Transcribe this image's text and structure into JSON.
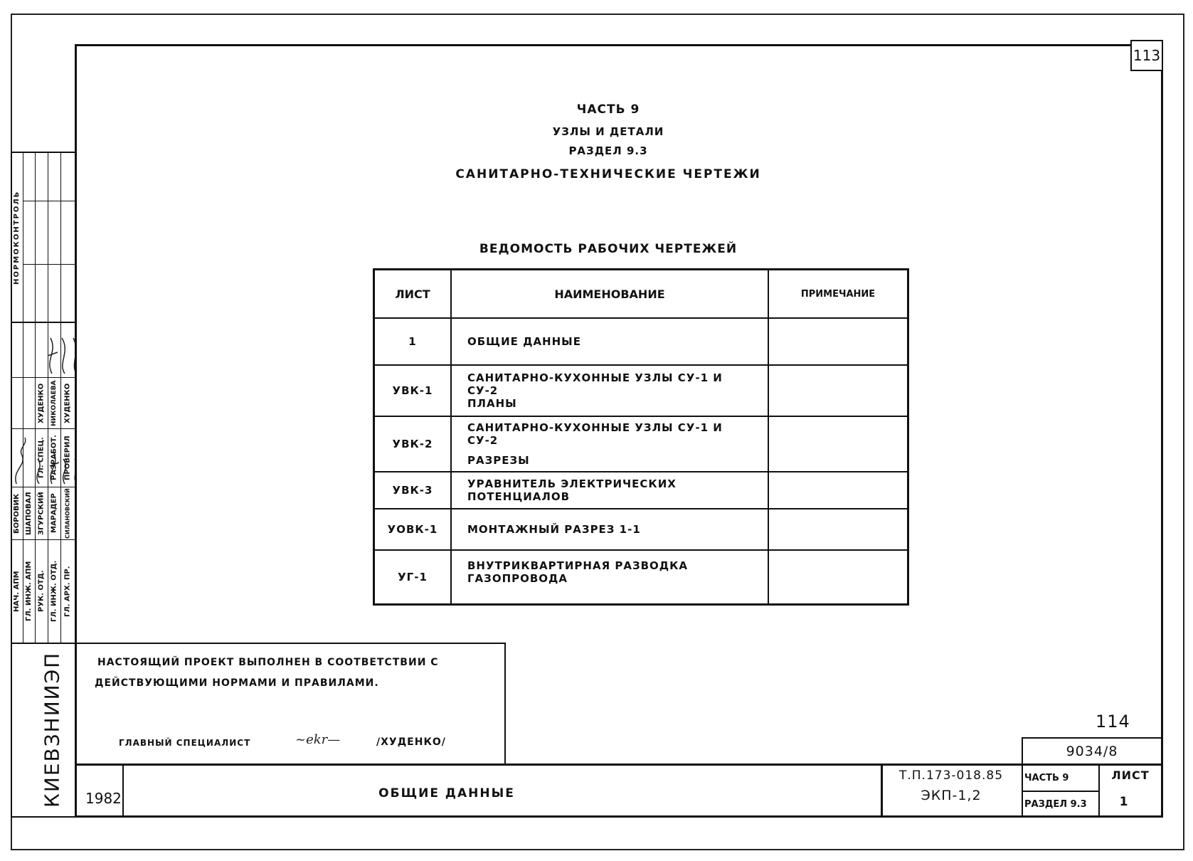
{
  "page_number_top": "113",
  "page_number_bottom": "114",
  "title": {
    "part": "Часть 9",
    "subtitle": "Узлы и детали",
    "section": "Раздел 9.3",
    "main": "Санитарно-технические чертежи"
  },
  "register_title": "Ведомость рабочих чертежей",
  "table": {
    "headers": [
      "Лист",
      "Наименование",
      "Примечание"
    ],
    "rows": [
      {
        "sheet": "1",
        "name": "Общие данные",
        "note": ""
      },
      {
        "sheet": "УВК-1",
        "name": "Санитарно-кухонные узлы СУ-1 и СУ-2",
        "name2": "Планы",
        "note": ""
      },
      {
        "sheet": "УВК-2",
        "name": "Санитарно-кухонные узлы СУ-1 и СУ-2",
        "name2": "Разрезы",
        "note": ""
      },
      {
        "sheet": "УВК-3",
        "name": "Уравнитель электрических потенциалов",
        "note": ""
      },
      {
        "sheet": "УОВК-1",
        "name": "Монтажный разрез 1-1",
        "note": ""
      },
      {
        "sheet": "УГ-1",
        "name": "Внутриквартирная разводка газопровода",
        "note": ""
      }
    ]
  },
  "compliance_note": {
    "line1": "Настоящий проект выполнен в соответствии с",
    "line2": "действующими нормами и правилами.",
    "role": "Главный специалист",
    "name": "/Худенко/"
  },
  "title_block": {
    "year": "1982",
    "sheet_title": "Общие данные",
    "code1": "Т.п.173-018.85",
    "code2": "ЭКП-1,2",
    "part": "Часть 9",
    "section": "Раздел 9.3",
    "sheet_label": "Лист",
    "sheet_number": "1",
    "archive_number": "9034/8",
    "organization": "КиевЗНИИЭП"
  },
  "stamp": {
    "normcontrol": "Нормоконтроль",
    "roles": [
      "Нач. АПМ",
      "Гл. инж. АПМ",
      "Рук. отд.",
      "Гл. инж. отд.",
      "Гл. арх. пр."
    ],
    "names": [
      "Боровик",
      "Шаповал",
      "Згурский",
      "Марадер",
      "Силановский"
    ],
    "roles2": [
      "Гл. спец.",
      "Разработ.",
      "Проверил"
    ],
    "names2": [
      "Худенко",
      "Николаева",
      "Худенко"
    ]
  }
}
